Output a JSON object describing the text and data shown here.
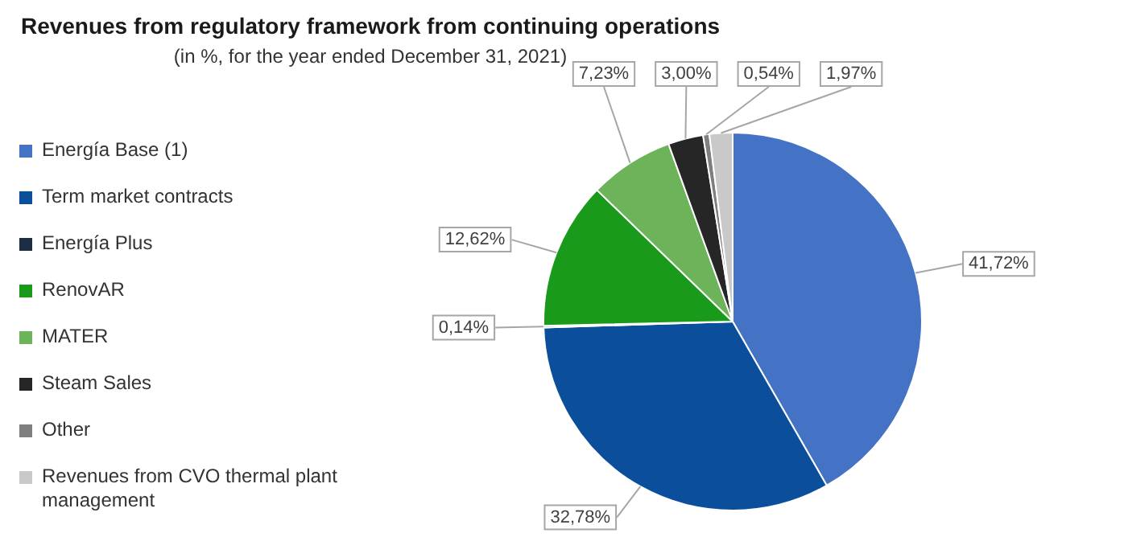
{
  "chart_data": {
    "type": "pie",
    "title": "Revenues from regulatory framework from continuing operations",
    "subtitle": "(in %, for the year ended December 31, 2021)",
    "categories": [
      "Energía Base (1)",
      "Term market contracts",
      "Energía Plus",
      "RenovAR",
      "MATER",
      "Steam Sales",
      "Other",
      "Revenues from CVO thermal plant management"
    ],
    "values": [
      41.72,
      32.78,
      0.14,
      12.62,
      7.23,
      3.0,
      0.54,
      1.97
    ],
    "colors": [
      "#4472c4",
      "#0b4f9c",
      "#1c2e44",
      "#1a9a1a",
      "#6db35a",
      "#262626",
      "#7f7f7f",
      "#c9c9c9"
    ],
    "value_labels": [
      "41,72%",
      "32,78%",
      "0,14%",
      "12,62%",
      "7,23%",
      "3,00%",
      "0,54%",
      "1,97%"
    ],
    "legend": "left"
  }
}
